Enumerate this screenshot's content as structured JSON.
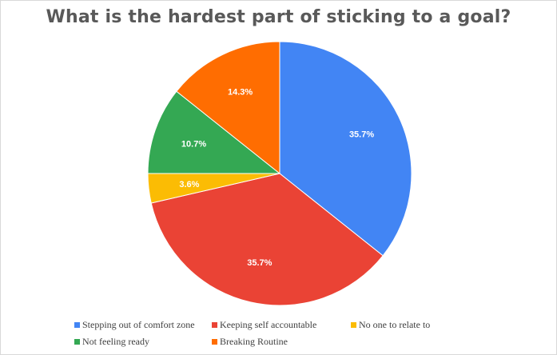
{
  "chart_data": {
    "type": "pie",
    "title": "What is the hardest part of sticking to a goal?",
    "legend_position": "bottom",
    "slices": [
      {
        "label": "Stepping out of comfort zone",
        "value": 35.7,
        "display": "35.7%",
        "color": "#4285f4"
      },
      {
        "label": "Keeping self accountable",
        "value": 35.7,
        "display": "35.7%",
        "color": "#ea4335"
      },
      {
        "label": "No one to relate to",
        "value": 3.6,
        "display": "3.6%",
        "color": "#fbbc04"
      },
      {
        "label": "Not feeling ready",
        "value": 10.7,
        "display": "10.7%",
        "color": "#34a853"
      },
      {
        "label": "Breaking Routine",
        "value": 14.3,
        "display": "14.3%",
        "color": "#ff6d01"
      }
    ]
  }
}
